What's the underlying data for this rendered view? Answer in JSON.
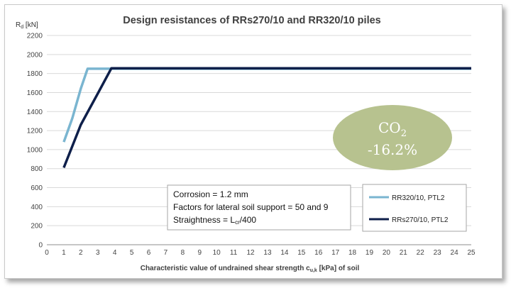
{
  "chart_data": {
    "type": "line",
    "title": "Design resistances of RRs270/10 and RR320/10 piles",
    "ylabel_main": "R",
    "ylabel_sub": "d",
    "ylabel_unit": " [kN]",
    "xlabel_pre": "Characteristic value of undrained shear strength c",
    "xlabel_sub": "u,k",
    "xlabel_post": " [kPa]  of soil",
    "xlim": [
      0,
      25
    ],
    "ylim": [
      0,
      2200
    ],
    "xticks": [
      0,
      1,
      2,
      3,
      4,
      5,
      6,
      7,
      8,
      9,
      10,
      11,
      12,
      13,
      14,
      15,
      16,
      17,
      18,
      19,
      20,
      21,
      22,
      23,
      24,
      25
    ],
    "yticks": [
      0,
      200,
      400,
      600,
      800,
      1000,
      1200,
      1400,
      1600,
      1800,
      2000,
      2200
    ],
    "grid": "horizontal",
    "legend_position": "bottom-right",
    "series": [
      {
        "name": "RR320/10, PTL2",
        "color": "#7ab5d0",
        "x": [
          1,
          1.5,
          2,
          2.4,
          25
        ],
        "y": [
          1080,
          1330,
          1640,
          1850,
          1850
        ]
      },
      {
        "name": "RRs270/10, PTL2",
        "color": "#0e1f4a",
        "x": [
          1,
          2,
          3,
          3.8,
          25
        ],
        "y": [
          810,
          1260,
          1590,
          1855,
          1855
        ]
      }
    ],
    "annotation_box": {
      "line1": "Corrosion = 1.2 mm",
      "line2": "Factors for lateral soil support = 50 and 9",
      "line3_pre": "Straightness = L",
      "line3_sub": "cr",
      "line3_post": "/400"
    },
    "badge": {
      "line1_main": "CO",
      "line1_sub": "2",
      "line2": "-16.2%",
      "color": "#b7c28f"
    }
  }
}
